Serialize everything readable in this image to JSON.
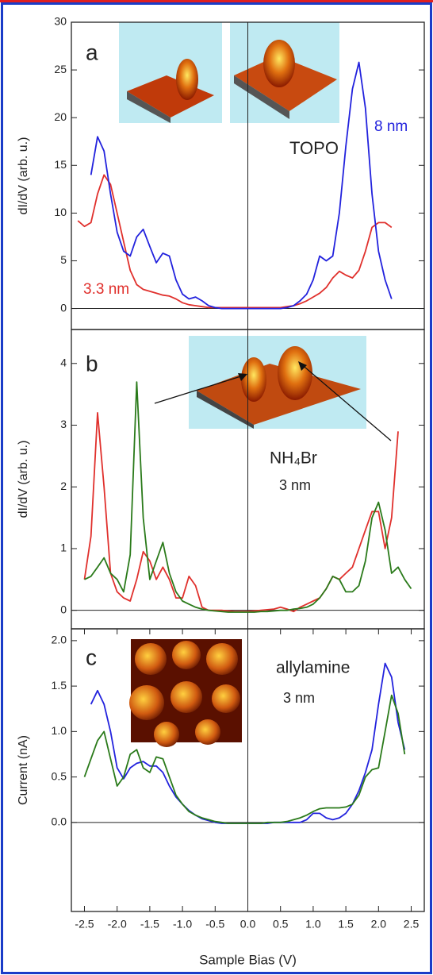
{
  "chart_data": [
    {
      "type": "line",
      "ylabel": "dI/dV (arb. u.)",
      "annotations": [
        "a",
        "TOPO"
      ],
      "xlim": [
        -2.7,
        2.7
      ],
      "ylim": [
        -2.2,
        30
      ],
      "yticks": [
        0,
        5,
        10,
        15,
        20,
        25,
        30
      ],
      "zero_lines": true,
      "x": [
        -2.6,
        -2.5,
        -2.4,
        -2.3,
        -2.2,
        -2.1,
        -2.0,
        -1.9,
        -1.8,
        -1.7,
        -1.6,
        -1.5,
        -1.4,
        -1.3,
        -1.2,
        -1.1,
        -1.0,
        -0.9,
        -0.8,
        -0.7,
        -0.6,
        -0.5,
        -0.4,
        -0.3,
        -0.2,
        -0.1,
        0,
        0.1,
        0.2,
        0.3,
        0.4,
        0.5,
        0.6,
        0.7,
        0.8,
        0.9,
        1.0,
        1.1,
        1.2,
        1.3,
        1.4,
        1.5,
        1.6,
        1.7,
        1.8,
        1.9,
        2.0,
        2.1,
        2.2
      ],
      "series": [
        {
          "name": "3.3 nm",
          "color": "#e0302c",
          "values": [
            9.2,
            8.6,
            9.0,
            12,
            14,
            13,
            10,
            7,
            4,
            2.5,
            2,
            1.8,
            1.6,
            1.4,
            1.3,
            1.0,
            0.6,
            0.4,
            0.3,
            0.2,
            0.1,
            0.1,
            0.1,
            0.1,
            0.1,
            0.1,
            0.1,
            0.1,
            0.1,
            0.1,
            0.1,
            0.1,
            0.2,
            0.3,
            0.5,
            0.8,
            1.2,
            1.6,
            2.2,
            3.2,
            3.9,
            3.5,
            3.2,
            4.0,
            6.0,
            8.5,
            9.0,
            9.0,
            8.5
          ]
        },
        {
          "name": "8 nm",
          "color": "#2222dd",
          "values": [
            null,
            null,
            14,
            18,
            16.5,
            12,
            8,
            6,
            5.5,
            7.5,
            8.3,
            6.5,
            4.8,
            5.8,
            5.5,
            3,
            1.5,
            1.0,
            1.2,
            0.8,
            0.3,
            0.1,
            0,
            0,
            0,
            0,
            0,
            0,
            0,
            0,
            0,
            0,
            0.1,
            0.3,
            0.8,
            1.5,
            3,
            5.5,
            5.0,
            5.5,
            10,
            17,
            23,
            25.8,
            21,
            12,
            6,
            3,
            1
          ]
        }
      ]
    },
    {
      "type": "line",
      "ylabel": "dI/dV (arb. u.)",
      "annotations": [
        "b",
        "NH₄Br",
        "3 nm"
      ],
      "xlim": [
        -2.7,
        2.7
      ],
      "ylim": [
        -0.3,
        4.55
      ],
      "yticks": [
        0,
        1,
        2,
        3,
        4
      ],
      "zero_lines": true,
      "x": [
        -2.5,
        -2.4,
        -2.3,
        -2.2,
        -2.1,
        -2.0,
        -1.9,
        -1.8,
        -1.7,
        -1.6,
        -1.5,
        -1.4,
        -1.3,
        -1.2,
        -1.1,
        -1.0,
        -0.9,
        -0.8,
        -0.7,
        -0.6,
        -0.5,
        -0.4,
        -0.3,
        -0.2,
        -0.1,
        0,
        0.1,
        0.2,
        0.3,
        0.4,
        0.5,
        0.6,
        0.7,
        0.8,
        0.9,
        1.0,
        1.1,
        1.2,
        1.3,
        1.4,
        1.5,
        1.6,
        1.7,
        1.8,
        1.9,
        2.0,
        2.1,
        2.2,
        2.3,
        2.4,
        2.5
      ],
      "series": [
        {
          "color": "#e0302c",
          "values": [
            0.5,
            1.2,
            3.2,
            2.0,
            0.6,
            0.3,
            0.2,
            0.15,
            0.5,
            0.95,
            0.8,
            0.5,
            0.7,
            0.5,
            0.2,
            0.2,
            0.55,
            0.4,
            0.05,
            0,
            0,
            0,
            -0.01,
            -0.02,
            -0.02,
            -0.02,
            -0.01,
            0,
            0.01,
            0.02,
            0.05,
            0.02,
            -0.02,
            0.05,
            0.1,
            0.15,
            0.2,
            0.35,
            0.55,
            0.5,
            0.6,
            0.7,
            1.0,
            1.3,
            1.6,
            1.6,
            1.0,
            1.5,
            2.9,
            null,
            null
          ]
        },
        {
          "color": "#2a7a1a",
          "values": [
            0.5,
            0.55,
            0.7,
            0.85,
            0.6,
            0.5,
            0.3,
            0.9,
            3.7,
            1.5,
            0.5,
            0.8,
            1.1,
            0.6,
            0.3,
            0.15,
            0.1,
            0.05,
            0.02,
            0,
            -0.01,
            -0.02,
            -0.03,
            -0.03,
            -0.03,
            -0.03,
            -0.03,
            -0.02,
            -0.02,
            -0.01,
            0,
            0,
            0.02,
            0.03,
            0.05,
            0.1,
            0.2,
            0.35,
            0.55,
            0.5,
            0.3,
            0.3,
            0.4,
            0.8,
            1.5,
            1.75,
            1.3,
            0.6,
            0.7,
            0.5,
            0.35
          ]
        }
      ]
    },
    {
      "type": "line",
      "ylabel": "Current (nA)",
      "xlabel": "Sample Bias (V)",
      "annotations": [
        "c",
        "allylamine",
        "3 nm"
      ],
      "xlim": [
        -2.7,
        2.7
      ],
      "ylim": [
        -0.98,
        2.13
      ],
      "zero_lines": true,
      "yticks": [
        {
          "value": 0,
          "label": "0.0"
        },
        0.5,
        {
          "value": 1,
          "label": "1.0"
        },
        1.5,
        {
          "value": 2,
          "label": "2.0"
        }
      ],
      "xticks": [
        {
          "value": -2.5,
          "label": "-2.5"
        },
        {
          "value": -2,
          "label": "-2.0"
        },
        {
          "value": -1.5,
          "label": "-1.5"
        },
        {
          "value": -1,
          "label": "-1.0"
        },
        {
          "value": -0.5,
          "label": "-0.5"
        },
        {
          "value": 0,
          "label": "0.0"
        },
        0.5,
        {
          "value": 1,
          "label": "1.0"
        },
        1.5,
        {
          "value": 2,
          "label": "2.0"
        },
        2.5
      ],
      "x": [
        -2.5,
        -2.4,
        -2.3,
        -2.2,
        -2.1,
        -2.0,
        -1.9,
        -1.8,
        -1.7,
        -1.6,
        -1.5,
        -1.4,
        -1.3,
        -1.2,
        -1.1,
        -1.0,
        -0.9,
        -0.8,
        -0.7,
        -0.6,
        -0.5,
        -0.4,
        -0.3,
        -0.2,
        -0.1,
        0,
        0.1,
        0.2,
        0.3,
        0.4,
        0.5,
        0.6,
        0.7,
        0.8,
        0.9,
        1.0,
        1.1,
        1.2,
        1.3,
        1.4,
        1.5,
        1.6,
        1.7,
        1.8,
        1.9,
        2.0,
        2.1,
        2.2,
        2.3,
        2.4,
        2.5
      ],
      "series": [
        {
          "color": "#2222dd",
          "values": [
            null,
            1.3,
            1.45,
            1.3,
            1.0,
            0.6,
            0.48,
            0.6,
            0.65,
            0.67,
            0.62,
            0.62,
            0.55,
            0.4,
            0.28,
            0.2,
            0.13,
            0.08,
            0.04,
            0.02,
            0,
            -0.01,
            -0.01,
            -0.01,
            -0.01,
            -0.01,
            -0.01,
            -0.01,
            -0.01,
            0,
            0,
            0,
            0,
            0,
            0.03,
            0.1,
            0.1,
            0.05,
            0.03,
            0.05,
            0.1,
            0.2,
            0.35,
            0.55,
            0.8,
            1.3,
            1.75,
            1.6,
            1.1,
            0.8,
            null
          ]
        },
        {
          "color": "#2a7a1a",
          "values": [
            0.5,
            0.7,
            0.9,
            1.0,
            0.7,
            0.4,
            0.5,
            0.75,
            0.8,
            0.6,
            0.55,
            0.72,
            0.7,
            0.5,
            0.3,
            0.2,
            0.12,
            0.08,
            0.05,
            0.03,
            0.01,
            0,
            -0.01,
            -0.01,
            -0.01,
            -0.01,
            -0.01,
            -0.01,
            0,
            0,
            0,
            0.01,
            0.03,
            0.05,
            0.08,
            0.12,
            0.15,
            0.16,
            0.16,
            0.16,
            0.17,
            0.2,
            0.3,
            0.5,
            0.58,
            0.6,
            1.0,
            1.4,
            1.2,
            0.75,
            null
          ]
        }
      ]
    }
  ]
}
